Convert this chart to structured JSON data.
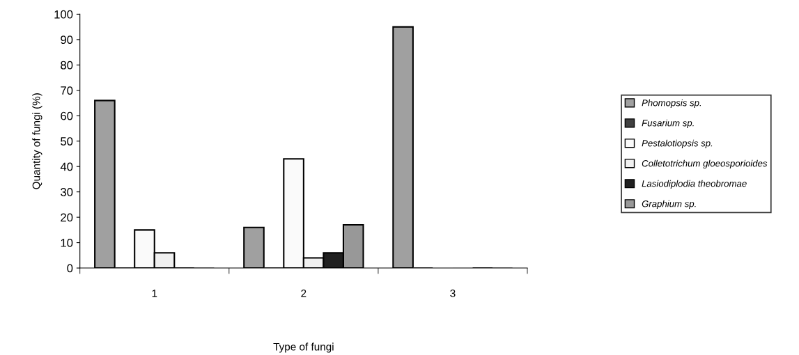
{
  "chart_data": {
    "type": "bar",
    "xlabel": "Type of fungi",
    "ylabel": "Quantity of fungi (%)",
    "categories": [
      "1",
      "2",
      "3"
    ],
    "series": [
      {
        "name": "Phomopsis sp.",
        "color": "#a0a0a0",
        "values": [
          66,
          16,
          95
        ]
      },
      {
        "name": "Fusarium sp.",
        "color": "#404040",
        "values": [
          0,
          0,
          0
        ]
      },
      {
        "name": "Pestalotiopsis sp.",
        "color": "#fafafa",
        "values": [
          15,
          43,
          0
        ]
      },
      {
        "name": "Colletotrichum gloeosporioides",
        "color": "#f0f0f0",
        "values": [
          6,
          4,
          0
        ]
      },
      {
        "name": "Lasiodiplodia theobromae",
        "color": "#202020",
        "values": [
          0,
          6,
          0
        ]
      },
      {
        "name": "Graphium sp.",
        "color": "#989898",
        "values": [
          0,
          17,
          0
        ]
      }
    ],
    "ylim": [
      0,
      100
    ],
    "yticks": [
      0,
      10,
      20,
      30,
      40,
      50,
      60,
      70,
      80,
      90,
      100
    ],
    "grid": false,
    "legend": "right"
  }
}
